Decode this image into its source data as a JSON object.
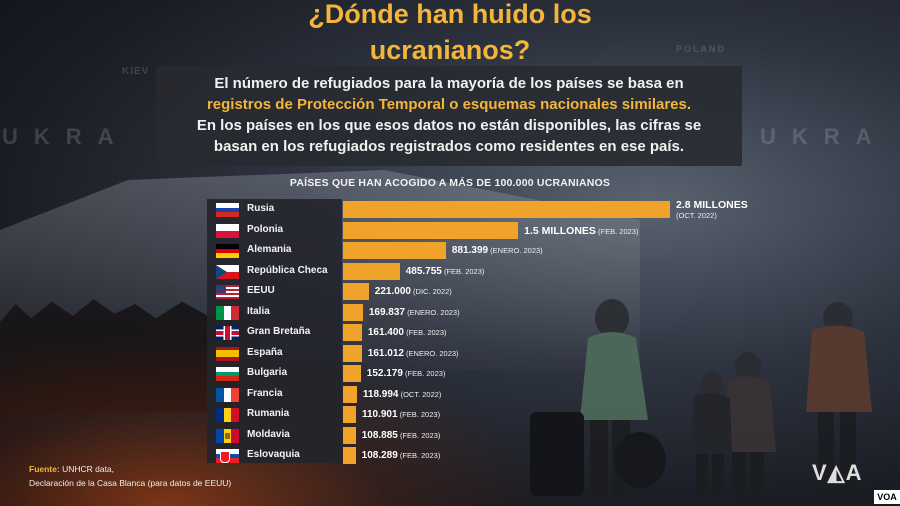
{
  "header": {
    "title_line1": "¿Dónde han huido los",
    "title_line2": "ucranianos?",
    "desc_line1": "El número de refugiados para la mayoría de los países se basa en",
    "desc_line2": "registros de Protección Temporal o esquemas nacionales similares.",
    "desc_line3": "En los países en los que esos datos no están disponibles, las cifras se",
    "desc_line4": "basan en los refugiados registrados como residentes en ese país."
  },
  "background": {
    "map_words": [
      "KIEV",
      "UKRA",
      "POLAND",
      "UKRA"
    ]
  },
  "colors": {
    "accent": "#f3b53b",
    "bar": "#f0a32b"
  },
  "chart_data": {
    "type": "bar",
    "orientation": "horizontal",
    "title": "PAÍSES QUE HAN ACOGIDO A MÁS DE 100.000 UCRANIANOS",
    "categories": [
      "Rusia",
      "Polonia",
      "Alemania",
      "República Checa",
      "EEUU",
      "Italia",
      "Gran Bretaña",
      "España",
      "Bulgaria",
      "Francia",
      "Rumania",
      "Moldavia",
      "Eslovaquia"
    ],
    "values": [
      2800000,
      1500000,
      881399,
      485755,
      221000,
      169837,
      161400,
      161012,
      152179,
      118994,
      110901,
      108885,
      108289
    ],
    "value_labels": [
      "2.8 MILLONES",
      "1.5 MILLONES",
      "881.399",
      "485.755",
      "221.000",
      "169.837",
      "161.400",
      "161.012",
      "152.179",
      "118.994",
      "110.901",
      "108.885",
      "108.289"
    ],
    "date_labels": [
      "(OCT. 2022)",
      "(FEB. 2023)",
      "(ENERO. 2023)",
      "(FEB. 2023)",
      "(DIC. 2022)",
      "(ENERO. 2023)",
      "(FEB. 2023)",
      "(ENERO. 2023)",
      "(FEB. 2023)",
      "(OCT. 2022)",
      "(FEB. 2023)",
      "(FEB. 2023)",
      "(FEB. 2023)"
    ],
    "flags": [
      "russia-flag",
      "poland-flag",
      "germany-flag",
      "czech-flag",
      "usa-flag",
      "italy-flag",
      "uk-flag",
      "spain-flag",
      "bulgaria-flag",
      "france-flag",
      "romania-flag",
      "moldova-flag",
      "slovakia-flag"
    ]
  },
  "footer": {
    "source_label": "Fuente:",
    "source_text": " UNHCR data,",
    "source_line2": "Declaración de la Casa Blanca (para datos de EEUU)",
    "logo": "V◭A",
    "badge": "VOA"
  }
}
